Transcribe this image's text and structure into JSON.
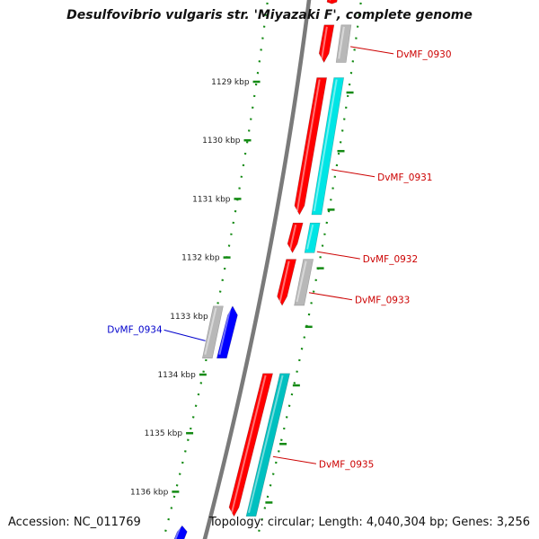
{
  "title": "Desulfovibrio vulgaris str. 'Miyazaki F', complete genome",
  "footer": {
    "accession": "Accession: NC_011769",
    "topology": "Topology: circular; Length: 4,040,304 bp; Genes: 3,256"
  },
  "colors": {
    "backbone": "#7a7a7a",
    "ticks": "#138a13",
    "forward_gene": "#ff0000",
    "reverse_gene": "#0000ff",
    "cyan_feature": "#00e5e5",
    "teal_feature": "#00c0c0",
    "gray_feature": "#b8b8b8",
    "label_red": "#cc0000",
    "label_blue": "#0000cc"
  },
  "scale": {
    "unit": "kbp",
    "ticks": [
      {
        "kbp": 1129,
        "label": "1129 kbp"
      },
      {
        "kbp": 1130,
        "label": "1130 kbp"
      },
      {
        "kbp": 1131,
        "label": "1131 kbp"
      },
      {
        "kbp": 1132,
        "label": "1132 kbp"
      },
      {
        "kbp": 1133,
        "label": "1133 kbp"
      },
      {
        "kbp": 1134,
        "label": "1134 kbp"
      },
      {
        "kbp": 1135,
        "label": "1135 kbp"
      },
      {
        "kbp": 1136,
        "label": "1136 kbp"
      }
    ]
  },
  "features": [
    {
      "track": "forward",
      "type": "gene",
      "start": 1127.55,
      "end": 1127.7,
      "strand": 1
    },
    {
      "track": "forward",
      "type": "gene",
      "start": 1128.0,
      "end": 1128.7,
      "strand": 1
    },
    {
      "track": "forward-outer",
      "type": "feature",
      "start": 1128.0,
      "end": 1128.7,
      "color": "gray"
    },
    {
      "track": "forward",
      "type": "gene",
      "start": 1128.9,
      "end": 1131.3,
      "strand": 1
    },
    {
      "track": "forward-outer",
      "type": "feature",
      "start": 1128.9,
      "end": 1131.3,
      "color": "cyan"
    },
    {
      "track": "forward",
      "type": "gene",
      "start": 1131.38,
      "end": 1131.95,
      "strand": 1
    },
    {
      "track": "forward-outer",
      "type": "feature",
      "start": 1131.38,
      "end": 1131.95,
      "color": "cyan"
    },
    {
      "track": "forward",
      "type": "gene",
      "start": 1132.0,
      "end": 1132.85,
      "strand": 1
    },
    {
      "track": "forward-outer",
      "type": "feature",
      "start": 1132.0,
      "end": 1132.85,
      "color": "gray"
    },
    {
      "track": "reverse-outer",
      "type": "feature",
      "start": 1132.8,
      "end": 1133.75,
      "color": "gray"
    },
    {
      "track": "reverse",
      "type": "gene",
      "start": 1132.8,
      "end": 1133.75,
      "strand": -1
    },
    {
      "track": "forward",
      "type": "gene",
      "start": 1133.95,
      "end": 1136.45,
      "strand": 1
    },
    {
      "track": "forward-outer",
      "type": "feature",
      "start": 1133.95,
      "end": 1136.45,
      "color": "teal"
    },
    {
      "track": "reverse",
      "type": "gene",
      "start": 1136.55,
      "end": 1136.9,
      "strand": -1
    }
  ],
  "labels": [
    {
      "text": "DvMF_0930",
      "side": "right",
      "kbp": 1128.4,
      "color": "red"
    },
    {
      "text": "DvMF_0931",
      "side": "right",
      "kbp": 1130.5,
      "color": "red"
    },
    {
      "text": "DvMF_0932",
      "side": "right",
      "kbp": 1131.9,
      "color": "red"
    },
    {
      "text": "DvMF_0933",
      "side": "right",
      "kbp": 1132.6,
      "color": "red"
    },
    {
      "text": "DvMF_0934",
      "side": "left",
      "kbp": 1133.3,
      "color": "blue"
    },
    {
      "text": "DvMF_0935",
      "side": "right",
      "kbp": 1135.4,
      "color": "red"
    }
  ]
}
